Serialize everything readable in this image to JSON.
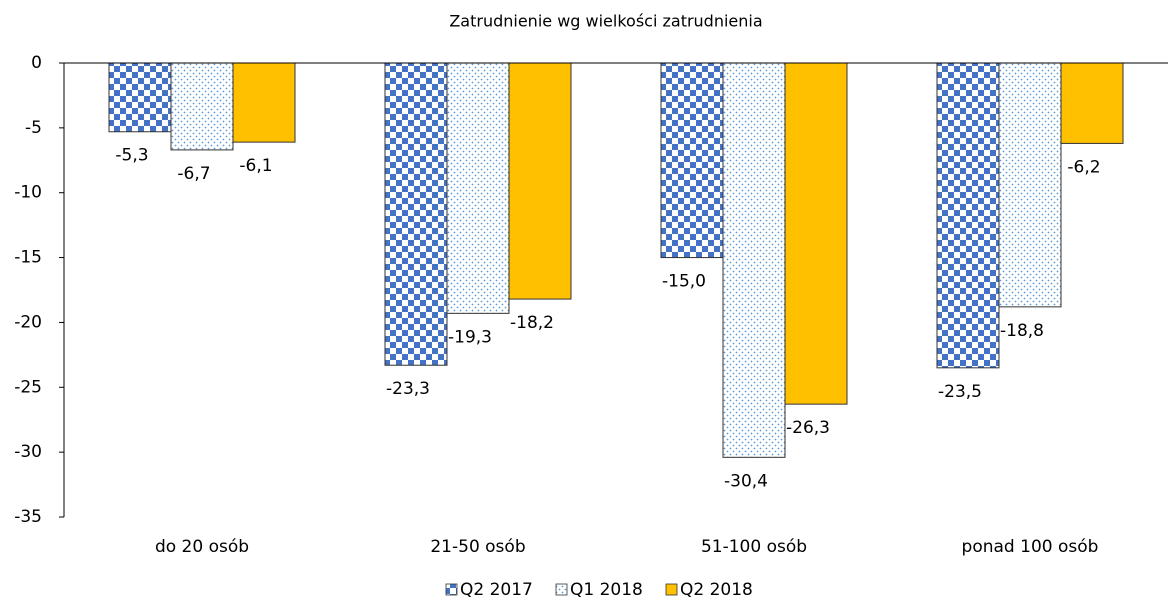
{
  "chart_data": {
    "type": "bar",
    "title": "Zatrudnienie wg wielkości zatrudnienia",
    "categories": [
      "do 20 osób",
      "21-50 osób",
      "51-100 osób",
      "ponad 100 osób"
    ],
    "series": [
      {
        "name": "Q2 2017",
        "color": "#4472c4",
        "pattern": "checker",
        "values": [
          -5.3,
          -23.3,
          -15.0,
          -23.5
        ],
        "value_labels": [
          "-5,3",
          "-23,3",
          "-15,0",
          "-23,5"
        ]
      },
      {
        "name": "Q1 2018",
        "color": "#5b9bd5",
        "pattern": "dots",
        "values": [
          -6.7,
          -19.3,
          -30.4,
          -18.8
        ],
        "value_labels": [
          "-6,7",
          "-19,3",
          "-30,4",
          "-18,8"
        ]
      },
      {
        "name": "Q2 2018",
        "color": "#ffc000",
        "pattern": "solid",
        "values": [
          -6.1,
          -18.2,
          -26.3,
          -6.2
        ],
        "value_labels": [
          "-6,1",
          "-18,2",
          "-26,3",
          "-6,2"
        ]
      }
    ],
    "ylim": [
      -35,
      0
    ],
    "yticks": [
      0,
      -5,
      -10,
      -15,
      -20,
      -25,
      -30,
      -35
    ],
    "grid": false,
    "legend": "bottom"
  }
}
